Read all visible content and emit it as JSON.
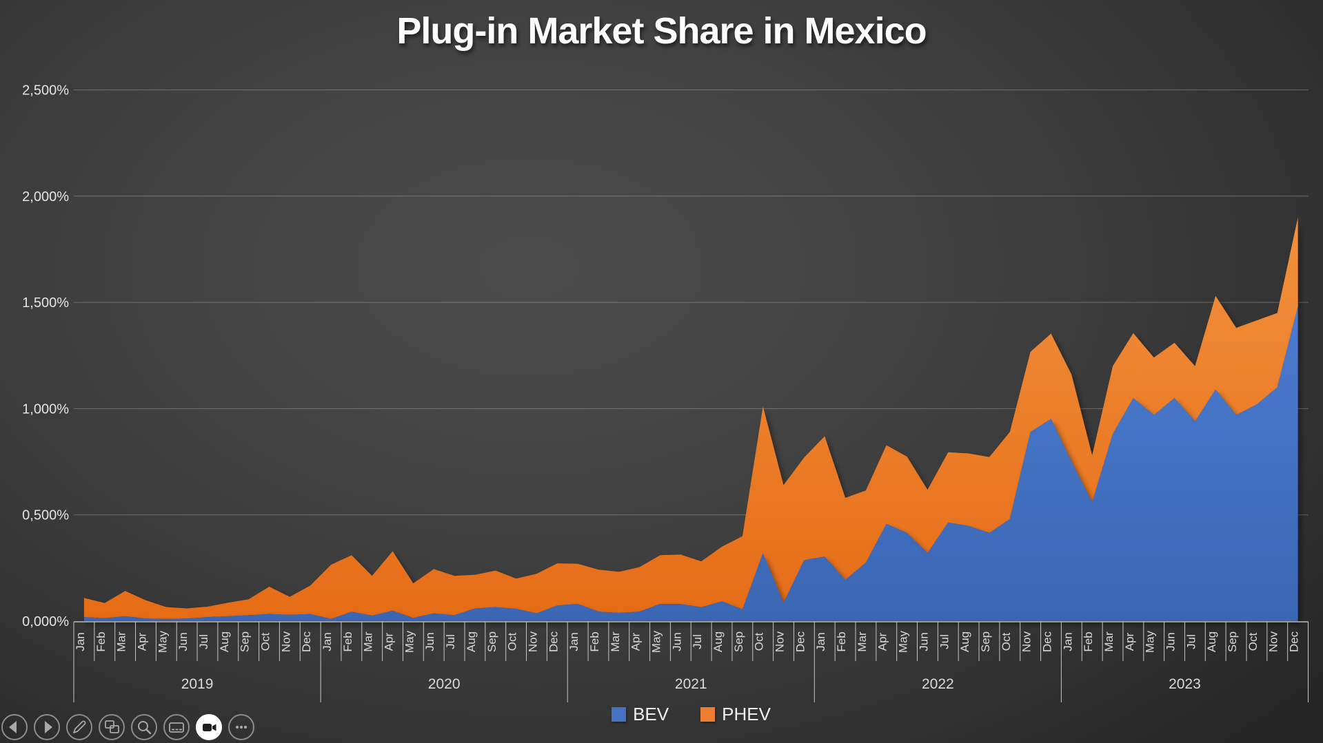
{
  "title": "Plug-in Market Share in Mexico",
  "legend": {
    "items": [
      {
        "label": "BEV",
        "color": "#4472C4"
      },
      {
        "label": "PHEV",
        "color": "#ED7D31"
      }
    ]
  },
  "toolbar": {
    "icons": [
      "previous-slide",
      "next-slide",
      "pen-tools",
      "see-all-slides",
      "zoom-to-slide",
      "toggle-subtitles",
      "camera",
      "more-options"
    ],
    "active_icon": "camera"
  },
  "colors": {
    "bev": "#4472C4",
    "phev": "#ED7D31",
    "background_center": "#4c4c4c",
    "background_edge": "#262626",
    "axis_text": "#e4e4e4",
    "title_text": "#fdfdfd"
  },
  "chart_data": {
    "type": "area",
    "stacked": true,
    "title": "Plug-in Market Share in Mexico",
    "xlabel": "",
    "ylabel": "",
    "ylim": [
      0,
      2.5
    ],
    "grid": true,
    "legend_position": "bottom",
    "yticks": [
      {
        "label": "0,000%",
        "value": 0
      },
      {
        "label": "0,500%",
        "value": 0.5
      },
      {
        "label": "1,000%",
        "value": 1.0
      },
      {
        "label": "1,500%",
        "value": 1.5
      },
      {
        "label": "2,000%",
        "value": 2.0
      },
      {
        "label": "2,500%",
        "value": 2.5
      }
    ],
    "months": [
      "Jan",
      "Feb",
      "Mar",
      "Apr",
      "May",
      "Jun",
      "Jul",
      "Aug",
      "Sep",
      "Oct",
      "Nov",
      "Dec"
    ],
    "years": [
      "2019",
      "2020",
      "2021",
      "2022",
      "2023"
    ],
    "series": [
      {
        "name": "BEV",
        "color": "#4472C4",
        "values": [
          0.019,
          0.014,
          0.023,
          0.012,
          0.01,
          0.012,
          0.019,
          0.023,
          0.028,
          0.033,
          0.03,
          0.033,
          0.01,
          0.044,
          0.026,
          0.049,
          0.015,
          0.037,
          0.028,
          0.06,
          0.066,
          0.058,
          0.037,
          0.074,
          0.081,
          0.045,
          0.039,
          0.045,
          0.081,
          0.08,
          0.065,
          0.093,
          0.055,
          0.32,
          0.087,
          0.287,
          0.304,
          0.194,
          0.275,
          0.458,
          0.415,
          0.32,
          0.464,
          0.448,
          0.415,
          0.481,
          0.89,
          0.952,
          0.75,
          0.56,
          0.88,
          1.05,
          0.97,
          1.05,
          0.94,
          1.09,
          0.97,
          1.02,
          1.1,
          1.48
        ]
      },
      {
        "name": "PHEV",
        "color": "#ED7D31",
        "values": [
          0.09,
          0.071,
          0.119,
          0.086,
          0.056,
          0.048,
          0.049,
          0.064,
          0.075,
          0.129,
          0.084,
          0.135,
          0.255,
          0.266,
          0.187,
          0.28,
          0.163,
          0.208,
          0.185,
          0.158,
          0.172,
          0.142,
          0.186,
          0.198,
          0.189,
          0.197,
          0.193,
          0.209,
          0.229,
          0.233,
          0.216,
          0.257,
          0.345,
          0.69,
          0.553,
          0.483,
          0.566,
          0.386,
          0.34,
          0.37,
          0.359,
          0.298,
          0.331,
          0.341,
          0.357,
          0.409,
          0.377,
          0.401,
          0.41,
          0.22,
          0.32,
          0.305,
          0.27,
          0.26,
          0.26,
          0.44,
          0.41,
          0.395,
          0.35,
          0.42
        ]
      }
    ]
  }
}
